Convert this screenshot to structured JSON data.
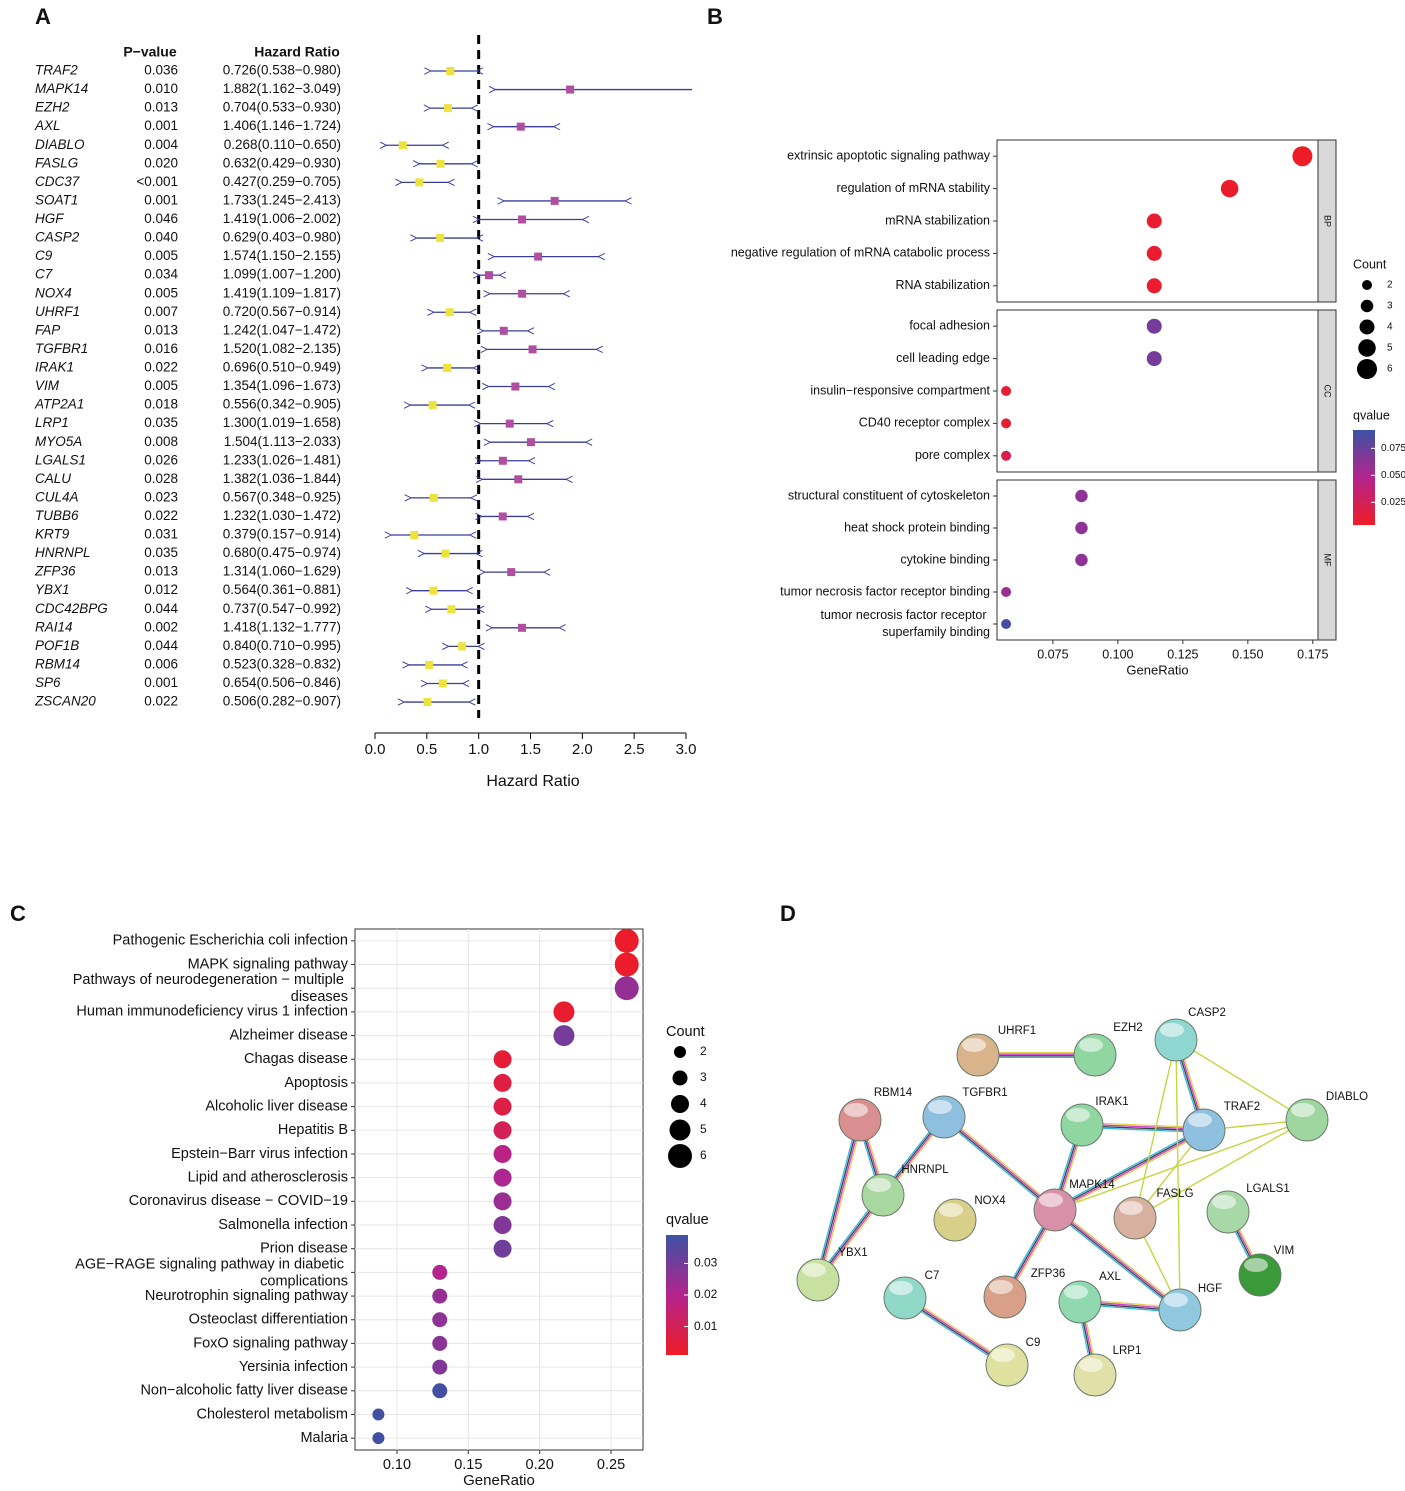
{
  "chart_data": [
    {
      "type": "forest",
      "panel": "A",
      "pvalue_header": "P−value",
      "hr_header": "Hazard Ratio",
      "x_label": "Hazard Ratio",
      "categories": [
        "TRAF2",
        "MAPK14",
        "EZH2",
        "AXL",
        "DIABLO",
        "FASLG",
        "CDC37",
        "SOAT1",
        "HGF",
        "CASP2",
        "C9",
        "C7",
        "NOX4",
        "UHRF1",
        "FAP",
        "TGFBR1",
        "IRAK1",
        "VIM",
        "ATP2A1",
        "LRP1",
        "MYO5A",
        "LGALS1",
        "CALU",
        "CUL4A",
        "TUBB6",
        "KRT9",
        "HNRNPL",
        "ZFP36",
        "YBX1",
        "CDC42BPG",
        "RAI14",
        "POF1B",
        "RBM14",
        "SP6",
        "ZSCAN20"
      ],
      "p_values": [
        "0.036",
        "0.010",
        "0.013",
        "0.001",
        "0.004",
        "0.020",
        "<0.001",
        "0.001",
        "0.046",
        "0.040",
        "0.005",
        "0.034",
        "0.005",
        "0.007",
        "0.013",
        "0.016",
        "0.022",
        "0.005",
        "0.018",
        "0.035",
        "0.008",
        "0.026",
        "0.028",
        "0.023",
        "0.022",
        "0.031",
        "0.035",
        "0.013",
        "0.012",
        "0.044",
        "0.002",
        "0.044",
        "0.006",
        "0.001",
        "0.022"
      ],
      "hr_labels": [
        "0.726(0.538−0.980)",
        "1.882(1.162−3.049)",
        "0.704(0.533−0.930)",
        "1.406(1.146−1.724)",
        "0.268(0.110−0.650)",
        "0.632(0.429−0.930)",
        "0.427(0.259−0.705)",
        "1.733(1.245−2.413)",
        "1.419(1.006−2.002)",
        "0.629(0.403−0.980)",
        "1.574(1.150−2.155)",
        "1.099(1.007−1.200)",
        "1.419(1.109−1.817)",
        "0.720(0.567−0.914)",
        "1.242(1.047−1.472)",
        "1.520(1.082−2.135)",
        "0.696(0.510−0.949)",
        "1.354(1.096−1.673)",
        "0.556(0.342−0.905)",
        "1.300(1.019−1.658)",
        "1.504(1.113−2.033)",
        "1.233(1.026−1.481)",
        "1.382(1.036−1.844)",
        "0.567(0.348−0.925)",
        "1.232(1.030−1.472)",
        "0.379(0.157−0.914)",
        "0.680(0.475−0.974)",
        "1.314(1.060−1.629)",
        "0.564(0.361−0.881)",
        "0.737(0.547−0.992)",
        "1.418(1.132−1.777)",
        "0.840(0.710−0.995)",
        "0.523(0.328−0.832)",
        "0.654(0.506−0.846)",
        "0.506(0.282−0.907)"
      ],
      "values": [
        0.726,
        1.882,
        0.704,
        1.406,
        0.268,
        0.632,
        0.427,
        1.733,
        1.419,
        0.629,
        1.574,
        1.099,
        1.419,
        0.72,
        1.242,
        1.52,
        0.696,
        1.354,
        0.556,
        1.3,
        1.504,
        1.233,
        1.382,
        0.567,
        1.232,
        0.379,
        0.68,
        1.314,
        0.564,
        0.737,
        1.418,
        0.84,
        0.523,
        0.654,
        0.506
      ],
      "lower": [
        0.538,
        1.162,
        0.533,
        1.146,
        0.11,
        0.429,
        0.259,
        1.245,
        1.006,
        0.403,
        1.15,
        1.007,
        1.109,
        0.567,
        1.047,
        1.082,
        0.51,
        1.096,
        0.342,
        1.019,
        1.113,
        1.026,
        1.036,
        0.348,
        1.03,
        0.157,
        0.475,
        1.06,
        0.361,
        0.547,
        1.132,
        0.71,
        0.328,
        0.506,
        0.282
      ],
      "upper": [
        0.98,
        3.049,
        0.93,
        1.724,
        0.65,
        0.93,
        0.705,
        2.413,
        2.002,
        0.98,
        2.155,
        1.2,
        1.817,
        0.914,
        1.472,
        2.135,
        0.949,
        1.673,
        0.905,
        1.658,
        2.033,
        1.481,
        1.844,
        0.925,
        1.472,
        0.914,
        0.974,
        1.629,
        0.881,
        0.992,
        1.777,
        0.995,
        0.832,
        0.846,
        0.907
      ],
      "ref_line": 1,
      "xlim": [
        0,
        3
      ],
      "xticks": [
        {
          "value": 0,
          "label": "0.0"
        },
        0.5,
        {
          "value": 1,
          "label": "1.0"
        },
        1.5,
        {
          "value": 2,
          "label": "2.0"
        },
        2.5,
        {
          "value": 3,
          "label": "3.0"
        }
      ],
      "low_color": "#ece43c",
      "high_color": "#b04ea0",
      "whisker_color": "#3a3d9a"
    },
    {
      "type": "dot",
      "panel": "B",
      "x_label": "GeneRatio",
      "grid": false,
      "facets": [
        {
          "name": "BP",
          "categories": [
            "extrinsic apoptotic signaling pathway",
            "regulation of mRNA stability",
            "mRNA stabilization",
            "negative regulation of mRNA catabolic process",
            "RNA stabilization"
          ],
          "values": [
            0.171,
            0.143,
            0.114,
            0.114,
            0.114
          ],
          "counts": [
            6,
            5,
            4,
            4,
            4
          ],
          "qvalues": [
            0.004,
            0.006,
            0.008,
            0.008,
            0.008
          ]
        },
        {
          "name": "CC",
          "categories": [
            "focal adhesion",
            "cell leading edge",
            "insulin−responsive compartment",
            "CD40 receptor complex",
            "pore complex"
          ],
          "values": [
            0.114,
            0.114,
            0.057,
            0.057,
            0.057
          ],
          "counts": [
            4,
            4,
            2,
            2,
            2
          ],
          "qvalues": [
            0.072,
            0.072,
            0.01,
            0.01,
            0.02
          ]
        },
        {
          "name": "MF",
          "categories": [
            "structural constituent of cytoskeleton",
            "heat shock protein binding",
            "cytokine binding",
            "tumor necrosis factor receptor binding",
            "tumor necrosis factor receptor superfamily binding"
          ],
          "values": [
            0.086,
            0.086,
            0.086,
            0.057,
            0.057
          ],
          "counts": [
            3,
            3,
            3,
            2,
            2
          ],
          "qvalues": [
            0.062,
            0.062,
            0.062,
            0.058,
            0.088
          ]
        }
      ],
      "xlim": [
        0.0535,
        0.177
      ],
      "xticks": [
        0.075,
        {
          "value": 0.1,
          "label": "0.100"
        },
        0.125,
        {
          "value": 0.15,
          "label": "0.150"
        },
        0.175
      ],
      "size_title": "Count",
      "size_legend": [
        2,
        3,
        4,
        5,
        6
      ],
      "color_title": "qvalue",
      "clim": [
        0.004,
        0.092
      ],
      "cticks": [
        0.025,
        {
          "value": 0.05,
          "label": "0.050"
        },
        0.075
      ],
      "colors": [
        "#ee1c25",
        "#b4248e",
        "#3c52a3"
      ]
    },
    {
      "type": "dot",
      "panel": "C",
      "x_label": "GeneRatio",
      "grid": true,
      "categories": [
        "Pathogenic Escherichia coli infection",
        "MAPK signaling pathway",
        "Pathways of neurodegeneration − multiple diseases",
        "Human immunodeficiency virus 1 infection",
        "Alzheimer disease",
        "Chagas disease",
        "Apoptosis",
        "Alcoholic liver disease",
        "Hepatitis B",
        "Epstein−Barr virus infection",
        "Lipid and atherosclerosis",
        "Coronavirus disease − COVID−19",
        "Salmonella infection",
        "Prion disease",
        "AGE−RAGE signaling pathway in diabetic complications",
        "Neurotrophin signaling pathway",
        "Osteoclast differentiation",
        "FoxO signaling pathway",
        "Yersinia infection",
        "Non−alcoholic fatty liver disease",
        "Cholesterol metabolism",
        "Malaria"
      ],
      "values": [
        0.261,
        0.261,
        0.261,
        0.217,
        0.217,
        0.174,
        0.174,
        0.174,
        0.174,
        0.174,
        0.174,
        0.174,
        0.174,
        0.174,
        0.13,
        0.13,
        0.13,
        0.13,
        0.13,
        0.13,
        0.087,
        0.087
      ],
      "counts": [
        6,
        6,
        6,
        5,
        5,
        4,
        4,
        4,
        4,
        4,
        4,
        4,
        4,
        4,
        3,
        3,
        3,
        3,
        3,
        3,
        2,
        2
      ],
      "qvalues": [
        0.002,
        0.002,
        0.025,
        0.003,
        0.03,
        0.004,
        0.006,
        0.007,
        0.01,
        0.018,
        0.021,
        0.024,
        0.028,
        0.031,
        0.02,
        0.025,
        0.026,
        0.027,
        0.028,
        0.038,
        0.038,
        0.038
      ],
      "xlim": [
        0.0706,
        0.2724
      ],
      "xticks": [
        {
          "value": 0.1,
          "label": "0.10"
        },
        0.15,
        {
          "value": 0.2,
          "label": "0.20"
        },
        0.25
      ],
      "size_title": "Count",
      "size_legend": [
        2,
        3,
        4,
        5,
        6
      ],
      "color_title": "qvalue",
      "clim": [
        0.001,
        0.039
      ],
      "cticks": [
        0.01,
        0.02,
        0.03
      ],
      "colors": [
        "#ee1c25",
        "#b4248e",
        "#3c52a3"
      ]
    }
  ],
  "network": {
    "panel": "D",
    "nodes": [
      {
        "label": "UHRF1"
      },
      {
        "label": "EZH2"
      },
      {
        "label": "CASP2"
      },
      {
        "label": "RBM14"
      },
      {
        "label": "TGFBR1"
      },
      {
        "label": "IRAK1"
      },
      {
        "label": "TRAF2"
      },
      {
        "label": "DIABLO"
      },
      {
        "label": "HNRNPL"
      },
      {
        "label": "NOX4"
      },
      {
        "label": "MAPK14"
      },
      {
        "label": "FASLG"
      },
      {
        "label": "LGALS1"
      },
      {
        "label": "YBX1"
      },
      {
        "label": "C7"
      },
      {
        "label": "ZFP36"
      },
      {
        "label": "AXL"
      },
      {
        "label": "HGF"
      },
      {
        "label": "VIM"
      },
      {
        "label": "C9"
      },
      {
        "label": "LRP1"
      }
    ]
  }
}
